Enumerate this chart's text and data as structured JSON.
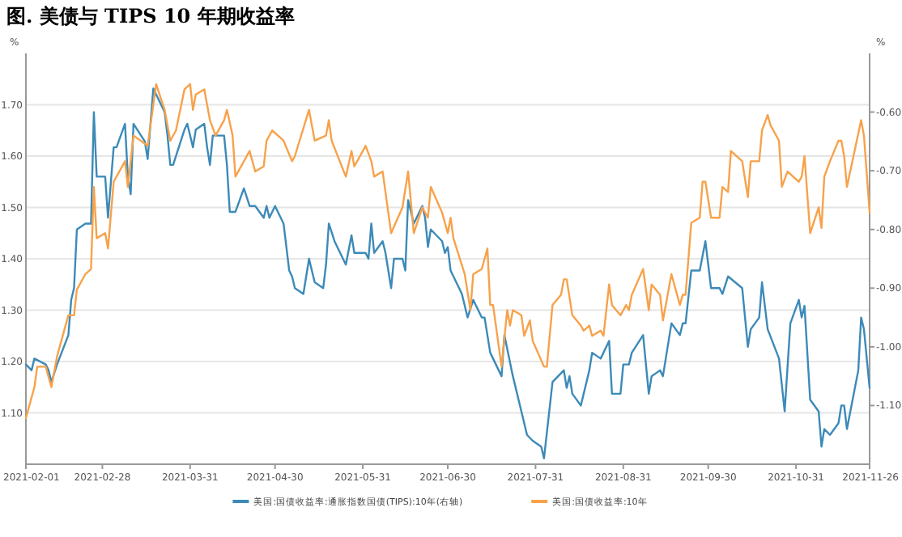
{
  "chart_data": {
    "type": "line",
    "title": "图. 美债与 TIPS 10 年期收益率",
    "ylabel": "%",
    "y2label": "%",
    "xlim": [
      "2021-02-01",
      "2021-11-26"
    ],
    "xticks": [
      "2021-02-01",
      "2021-02-28",
      "2021-03-31",
      "2021-04-30",
      "2021-05-31",
      "2021-06-30",
      "2021-07-31",
      "2021-08-31",
      "2021-09-30",
      "2021-10-31",
      "2021-11-26"
    ],
    "ylim": [
      1.0,
      1.8
    ],
    "yticks": [
      {
        "value": 1.1,
        "label": "1.10"
      },
      {
        "value": 1.2,
        "label": "1.20"
      },
      {
        "value": 1.3,
        "label": "1.30"
      },
      {
        "value": 1.4,
        "label": "1.40"
      },
      {
        "value": 1.5,
        "label": "1.50"
      },
      {
        "value": 1.6,
        "label": "1.60"
      },
      {
        "value": 1.7,
        "label": "1.70"
      }
    ],
    "y2lim": [
      -1.2,
      -0.5
    ],
    "y2ticks": [
      {
        "value": -1.1,
        "label": "-1.10"
      },
      {
        "value": -1.0,
        "label": "-1.00"
      },
      {
        "value": -0.9,
        "label": "-0.90"
      },
      {
        "value": -0.8,
        "label": "-0.80"
      },
      {
        "value": -0.7,
        "label": "-0.70"
      },
      {
        "value": -0.6,
        "label": "-0.60"
      }
    ],
    "grid": "y",
    "legend": "bottom",
    "series": [
      {
        "name": "美国:国债收益率:通胀指数国债(TIPS):10年(右轴)",
        "color": "#3c8ab8",
        "axis": "y2",
        "x": [
          "2021-02-01",
          "2021-02-03",
          "2021-02-04",
          "2021-02-08",
          "2021-02-09",
          "2021-02-10",
          "2021-02-12",
          "2021-02-16",
          "2021-02-17",
          "2021-02-18",
          "2021-02-19",
          "2021-02-22",
          "2021-02-24",
          "2021-02-25",
          "2021-02-26",
          "2021-03-01",
          "2021-03-02",
          "2021-03-04",
          "2021-03-05",
          "2021-03-08",
          "2021-03-09",
          "2021-03-10",
          "2021-03-11",
          "2021-03-15",
          "2021-03-16",
          "2021-03-18",
          "2021-03-22",
          "2021-03-23",
          "2021-03-24",
          "2021-03-25",
          "2021-03-29",
          "2021-03-30",
          "2021-04-01",
          "2021-04-02",
          "2021-04-05",
          "2021-04-06",
          "2021-04-07",
          "2021-04-08",
          "2021-04-12",
          "2021-04-13",
          "2021-04-14",
          "2021-04-16",
          "2021-04-19",
          "2021-04-21",
          "2021-04-23",
          "2021-04-26",
          "2021-04-27",
          "2021-04-28",
          "2021-04-30",
          "2021-05-03",
          "2021-05-05",
          "2021-05-06",
          "2021-05-07",
          "2021-05-10",
          "2021-05-12",
          "2021-05-14",
          "2021-05-17",
          "2021-05-18",
          "2021-05-19",
          "2021-05-21",
          "2021-05-25",
          "2021-05-27",
          "2021-05-28",
          "2021-06-01",
          "2021-06-02",
          "2021-06-03",
          "2021-06-04",
          "2021-06-07",
          "2021-06-08",
          "2021-06-10",
          "2021-06-11",
          "2021-06-14",
          "2021-06-15",
          "2021-06-16",
          "2021-06-18",
          "2021-06-21",
          "2021-06-22",
          "2021-06-23",
          "2021-06-24",
          "2021-06-28",
          "2021-06-29",
          "2021-06-30",
          "2021-07-01",
          "2021-07-05",
          "2021-07-07",
          "2021-07-09",
          "2021-07-12",
          "2021-07-13",
          "2021-07-15",
          "2021-07-19",
          "2021-07-20",
          "2021-07-23",
          "2021-07-28",
          "2021-07-30",
          "2021-08-02",
          "2021-08-03",
          "2021-08-06",
          "2021-08-10",
          "2021-08-11",
          "2021-08-12",
          "2021-08-13",
          "2021-08-16",
          "2021-08-19",
          "2021-08-20",
          "2021-08-23",
          "2021-08-26",
          "2021-08-27",
          "2021-08-30",
          "2021-08-31",
          "2021-09-02",
          "2021-09-03",
          "2021-09-07",
          "2021-09-09",
          "2021-09-10",
          "2021-09-13",
          "2021-09-14",
          "2021-09-17",
          "2021-09-20",
          "2021-09-21",
          "2021-09-22",
          "2021-09-24",
          "2021-09-27",
          "2021-09-29",
          "2021-10-01",
          "2021-10-04",
          "2021-10-05",
          "2021-10-07",
          "2021-10-12",
          "2021-10-14",
          "2021-10-15",
          "2021-10-18",
          "2021-10-19",
          "2021-10-21",
          "2021-10-25",
          "2021-10-27",
          "2021-10-29",
          "2021-11-01",
          "2021-11-02",
          "2021-11-03",
          "2021-11-05",
          "2021-11-08",
          "2021-11-09",
          "2021-11-10",
          "2021-11-12",
          "2021-11-15",
          "2021-11-16",
          "2021-11-17",
          "2021-11-18",
          "2021-11-22",
          "2021-11-23",
          "2021-11-24",
          "2021-11-26"
        ],
        "values": [
          -1.03,
          -1.04,
          -1.02,
          -1.03,
          -1.04,
          -1.06,
          -1.03,
          -0.98,
          -0.92,
          -0.9,
          -0.8,
          -0.79,
          -0.79,
          -0.6,
          -0.71,
          -0.71,
          -0.78,
          -0.66,
          -0.66,
          -0.62,
          -0.71,
          -0.74,
          -0.62,
          -0.65,
          -0.68,
          -0.56,
          -0.6,
          -0.64,
          -0.69,
          -0.69,
          -0.63,
          -0.62,
          -0.66,
          -0.63,
          -0.62,
          -0.66,
          -0.69,
          -0.64,
          -0.64,
          -0.69,
          -0.77,
          -0.77,
          -0.73,
          -0.76,
          -0.76,
          -0.78,
          -0.76,
          -0.78,
          -0.76,
          -0.79,
          -0.87,
          -0.88,
          -0.9,
          -0.91,
          -0.85,
          -0.89,
          -0.9,
          -0.86,
          -0.79,
          -0.82,
          -0.86,
          -0.81,
          -0.84,
          -0.84,
          -0.85,
          -0.79,
          -0.84,
          -0.82,
          -0.84,
          -0.9,
          -0.85,
          -0.85,
          -0.87,
          -0.75,
          -0.79,
          -0.76,
          -0.78,
          -0.83,
          -0.8,
          -0.82,
          -0.84,
          -0.83,
          -0.87,
          -0.91,
          -0.95,
          -0.92,
          -0.95,
          -0.95,
          -1.01,
          -1.05,
          -0.98,
          -1.05,
          -1.15,
          -1.16,
          -1.17,
          -1.19,
          -1.06,
          -1.04,
          -1.07,
          -1.05,
          -1.08,
          -1.1,
          -1.04,
          -1.01,
          -1.02,
          -0.99,
          -1.08,
          -1.08,
          -1.03,
          -1.03,
          -1.01,
          -0.98,
          -1.08,
          -1.05,
          -1.04,
          -1.05,
          -0.96,
          -0.98,
          -0.96,
          -0.96,
          -0.87,
          -0.87,
          -0.82,
          -0.9,
          -0.9,
          -0.91,
          -0.88,
          -0.9,
          -1.0,
          -0.97,
          -0.95,
          -0.89,
          -0.97,
          -1.02,
          -1.11,
          -0.96,
          -0.92,
          -0.95,
          -0.93,
          -1.09,
          -1.11,
          -1.17,
          -1.14,
          -1.15,
          -1.13,
          -1.1,
          -1.1,
          -1.14,
          -1.04,
          -0.95,
          -0.97,
          -1.07
        ]
      },
      {
        "name": "美国:国债收益率:10年",
        "color": "#f7a24b",
        "x": [
          "2021-02-01",
          "2021-02-04",
          "2021-02-05",
          "2021-02-08",
          "2021-02-10",
          "2021-02-12",
          "2021-02-16",
          "2021-02-18",
          "2021-02-19",
          "2021-02-22",
          "2021-02-24",
          "2021-02-25",
          "2021-02-26",
          "2021-03-01",
          "2021-03-02",
          "2021-03-04",
          "2021-03-08",
          "2021-03-09",
          "2021-03-11",
          "2021-03-16",
          "2021-03-19",
          "2021-03-22",
          "2021-03-24",
          "2021-03-26",
          "2021-03-29",
          "2021-03-31",
          "2021-04-01",
          "2021-04-02",
          "2021-04-05",
          "2021-04-07",
          "2021-04-09",
          "2021-04-12",
          "2021-04-13",
          "2021-04-15",
          "2021-04-16",
          "2021-04-19",
          "2021-04-21",
          "2021-04-23",
          "2021-04-26",
          "2021-04-27",
          "2021-04-29",
          "2021-05-03",
          "2021-05-06",
          "2021-05-07",
          "2021-05-12",
          "2021-05-14",
          "2021-05-18",
          "2021-05-19",
          "2021-05-20",
          "2021-05-25",
          "2021-05-27",
          "2021-05-28",
          "2021-06-01",
          "2021-06-03",
          "2021-06-04",
          "2021-06-07",
          "2021-06-10",
          "2021-06-14",
          "2021-06-16",
          "2021-06-18",
          "2021-06-21",
          "2021-06-23",
          "2021-06-24",
          "2021-06-28",
          "2021-06-30",
          "2021-07-01",
          "2021-07-02",
          "2021-07-06",
          "2021-07-08",
          "2021-07-09",
          "2021-07-12",
          "2021-07-14",
          "2021-07-15",
          "2021-07-16",
          "2021-07-19",
          "2021-07-21",
          "2021-07-22",
          "2021-07-23",
          "2021-07-26",
          "2021-07-27",
          "2021-07-29",
          "2021-07-30",
          "2021-08-03",
          "2021-08-04",
          "2021-08-06",
          "2021-08-09",
          "2021-08-10",
          "2021-08-11",
          "2021-08-13",
          "2021-08-16",
          "2021-08-17",
          "2021-08-19",
          "2021-08-20",
          "2021-08-23",
          "2021-08-24",
          "2021-08-26",
          "2021-08-27",
          "2021-08-30",
          "2021-09-01",
          "2021-09-02",
          "2021-09-03",
          "2021-09-07",
          "2021-09-09",
          "2021-09-10",
          "2021-09-13",
          "2021-09-14",
          "2021-09-17",
          "2021-09-20",
          "2021-09-21",
          "2021-09-22",
          "2021-09-24",
          "2021-09-27",
          "2021-09-28",
          "2021-09-29",
          "2021-10-01",
          "2021-10-04",
          "2021-10-05",
          "2021-10-07",
          "2021-10-08",
          "2021-10-12",
          "2021-10-14",
          "2021-10-15",
          "2021-10-18",
          "2021-10-19",
          "2021-10-21",
          "2021-10-22",
          "2021-10-25",
          "2021-10-26",
          "2021-10-28",
          "2021-11-01",
          "2021-11-02",
          "2021-11-03",
          "2021-11-05",
          "2021-11-08",
          "2021-11-09",
          "2021-11-10",
          "2021-11-12",
          "2021-11-15",
          "2021-11-16",
          "2021-11-17",
          "2021-11-18",
          "2021-11-23",
          "2021-11-24",
          "2021-11-26"
        ],
        "values": [
          1.09,
          1.15,
          1.19,
          1.19,
          1.15,
          1.21,
          1.29,
          1.29,
          1.34,
          1.37,
          1.38,
          1.54,
          1.44,
          1.45,
          1.42,
          1.55,
          1.59,
          1.54,
          1.64,
          1.62,
          1.74,
          1.69,
          1.63,
          1.65,
          1.73,
          1.74,
          1.69,
          1.72,
          1.73,
          1.67,
          1.64,
          1.67,
          1.69,
          1.64,
          1.56,
          1.59,
          1.61,
          1.57,
          1.58,
          1.63,
          1.65,
          1.63,
          1.59,
          1.6,
          1.69,
          1.63,
          1.64,
          1.67,
          1.63,
          1.56,
          1.61,
          1.58,
          1.62,
          1.59,
          1.56,
          1.57,
          1.45,
          1.5,
          1.57,
          1.45,
          1.5,
          1.48,
          1.54,
          1.49,
          1.45,
          1.48,
          1.44,
          1.37,
          1.3,
          1.37,
          1.38,
          1.42,
          1.31,
          1.31,
          1.19,
          1.3,
          1.27,
          1.3,
          1.29,
          1.25,
          1.28,
          1.24,
          1.19,
          1.19,
          1.31,
          1.33,
          1.36,
          1.36,
          1.29,
          1.27,
          1.26,
          1.27,
          1.25,
          1.26,
          1.25,
          1.35,
          1.31,
          1.29,
          1.31,
          1.3,
          1.33,
          1.38,
          1.3,
          1.35,
          1.33,
          1.28,
          1.37,
          1.31,
          1.33,
          1.33,
          1.47,
          1.48,
          1.55,
          1.55,
          1.48,
          1.48,
          1.54,
          1.53,
          1.61,
          1.59,
          1.52,
          1.59,
          1.59,
          1.65,
          1.68,
          1.66,
          1.63,
          1.54,
          1.57,
          1.55,
          1.56,
          1.6,
          1.45,
          1.5,
          1.46,
          1.56,
          1.59,
          1.63,
          1.63,
          1.6,
          1.54,
          1.67,
          1.64,
          1.49
        ]
      }
    ]
  }
}
